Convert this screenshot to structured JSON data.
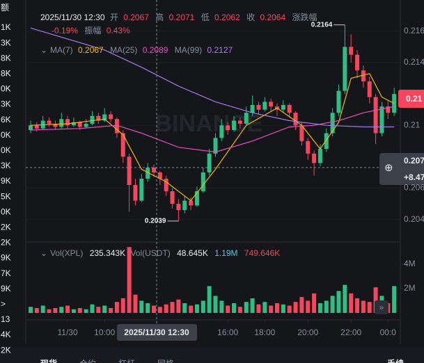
{
  "left_column": {
    "header": "额",
    "items": [
      "1K",
      "3K",
      "8K",
      "8K",
      "0K",
      "3K",
      "6K",
      "0K",
      "0K",
      "3K",
      "9K",
      "5K",
      "0K",
      "2K",
      "2K",
      "9K",
      "7K",
      "9K",
      ">",
      "13",
      "4K",
      "2K"
    ]
  },
  "info": {
    "time": "2025/11/30 12:30",
    "open_label": "开",
    "open": "0.2067",
    "high_label": "高",
    "high": "0.2071",
    "low_label": "低",
    "low": "0.2062",
    "close_label": "收",
    "close": "0.2064",
    "change_label": "涨跌幅",
    "change": "-0.19%",
    "amplitude_label": "振幅",
    "amplitude": "0.43%"
  },
  "ma_legend": [
    {
      "name": "MA(7)",
      "value": "0.2067"
    },
    {
      "name": "MA(25)",
      "value": "0.2089"
    },
    {
      "name": "MA(99)",
      "value": "0.2127"
    }
  ],
  "vol_legend": {
    "vol_xpl_label": "Vol(XPL)",
    "vol_xpl": "235.343K",
    "vol_usdt_label": "Vol(USDT)",
    "vol_usdt": "48.645K",
    "ma1": "1.19M",
    "ma2": "749.646K"
  },
  "watermark": "BINANCE",
  "price_badge": "0.21",
  "hover_badge": {
    "price": "0.207",
    "change": "+8.47"
  },
  "hover_time": "2025/11/30 12:30",
  "bottom_tabs": [
    "现货",
    "合约",
    "杠杆",
    "网格"
  ],
  "bottom_right": "手续",
  "chart_data": {
    "type": "candlestick",
    "up_color": "#2ebd85",
    "down_color": "#f6465d",
    "ylim": [
      0.2027,
      0.2171
    ],
    "yticks": [
      0.216,
      0.214,
      0.21,
      0.206,
      0.204
    ],
    "xticks": [
      {
        "value": 6,
        "label": "11/30"
      },
      {
        "value": 12,
        "label": "10:00"
      },
      {
        "value": 32,
        "label": "16:00"
      },
      {
        "value": 38,
        "label": "18:00"
      },
      {
        "value": 45,
        "label": "20:00"
      },
      {
        "value": 52,
        "label": "22:00"
      },
      {
        "value": 58,
        "label": "00:0"
      }
    ],
    "annotations": [
      {
        "text": "0.2164",
        "candle": 51
      },
      {
        "text": "0.2039",
        "candle": 24
      }
    ],
    "candles": [
      [
        0.2097,
        0.2103,
        0.2095,
        0.21
      ],
      [
        0.21,
        0.2102,
        0.2096,
        0.2098
      ],
      [
        0.2098,
        0.2106,
        0.2097,
        0.2103
      ],
      [
        0.2103,
        0.2105,
        0.2099,
        0.2101
      ],
      [
        0.2101,
        0.2103,
        0.2097,
        0.2099
      ],
      [
        0.2099,
        0.2108,
        0.2098,
        0.2104
      ],
      [
        0.2104,
        0.2106,
        0.2098,
        0.21
      ],
      [
        0.21,
        0.2105,
        0.2099,
        0.2102
      ],
      [
        0.2102,
        0.2103,
        0.2097,
        0.2099
      ],
      [
        0.2099,
        0.2104,
        0.2098,
        0.2101
      ],
      [
        0.2101,
        0.2109,
        0.21,
        0.2106
      ],
      [
        0.2106,
        0.2108,
        0.2101,
        0.2103
      ],
      [
        0.2103,
        0.2111,
        0.2102,
        0.2107
      ],
      [
        0.2107,
        0.2109,
        0.2102,
        0.2104
      ],
      [
        0.2104,
        0.2105,
        0.2092,
        0.2095
      ],
      [
        0.2095,
        0.2097,
        0.2076,
        0.208
      ],
      [
        0.208,
        0.2082,
        0.2045,
        0.2062
      ],
      [
        0.2062,
        0.2066,
        0.2049,
        0.2052
      ],
      [
        0.2052,
        0.2069,
        0.2051,
        0.2066
      ],
      [
        0.2066,
        0.2076,
        0.2064,
        0.2073
      ],
      [
        0.2073,
        0.2075,
        0.2067,
        0.207
      ],
      [
        0.207,
        0.2071,
        0.2062,
        0.2066
      ],
      [
        0.2066,
        0.2068,
        0.2055,
        0.2058
      ],
      [
        0.2058,
        0.206,
        0.2047,
        0.205
      ],
      [
        0.205,
        0.2053,
        0.2039,
        0.2046
      ],
      [
        0.2046,
        0.2055,
        0.2044,
        0.2052
      ],
      [
        0.2052,
        0.2054,
        0.2046,
        0.2049
      ],
      [
        0.2049,
        0.2061,
        0.2048,
        0.2058
      ],
      [
        0.2058,
        0.2073,
        0.2057,
        0.207
      ],
      [
        0.207,
        0.2085,
        0.2068,
        0.2082
      ],
      [
        0.2082,
        0.2095,
        0.208,
        0.2092
      ],
      [
        0.2092,
        0.2104,
        0.209,
        0.21
      ],
      [
        0.21,
        0.2102,
        0.2094,
        0.2097
      ],
      [
        0.2097,
        0.2106,
        0.2096,
        0.2103
      ],
      [
        0.2103,
        0.2105,
        0.2098,
        0.2101
      ],
      [
        0.2101,
        0.2112,
        0.21,
        0.2108
      ],
      [
        0.2108,
        0.2119,
        0.2106,
        0.2113
      ],
      [
        0.2113,
        0.2115,
        0.2107,
        0.211
      ],
      [
        0.211,
        0.2118,
        0.2109,
        0.2115
      ],
      [
        0.2115,
        0.2117,
        0.2109,
        0.2112
      ],
      [
        0.2112,
        0.2114,
        0.2106,
        0.211
      ],
      [
        0.211,
        0.2116,
        0.2108,
        0.2113
      ],
      [
        0.2113,
        0.2114,
        0.2105,
        0.2108
      ],
      [
        0.2108,
        0.2109,
        0.2097,
        0.21
      ],
      [
        0.21,
        0.2102,
        0.2087,
        0.209
      ],
      [
        0.209,
        0.2092,
        0.2078,
        0.2082
      ],
      [
        0.2082,
        0.2084,
        0.2068,
        0.2076
      ],
      [
        0.2076,
        0.2088,
        0.2074,
        0.2085
      ],
      [
        0.2085,
        0.2098,
        0.2083,
        0.2095
      ],
      [
        0.2095,
        0.2111,
        0.2093,
        0.2108
      ],
      [
        0.2108,
        0.2126,
        0.2106,
        0.2122
      ],
      [
        0.2122,
        0.2164,
        0.212,
        0.215
      ],
      [
        0.215,
        0.2158,
        0.214,
        0.2145
      ],
      [
        0.2145,
        0.2148,
        0.213,
        0.2135
      ],
      [
        0.2135,
        0.2138,
        0.2124,
        0.2128
      ],
      [
        0.2128,
        0.2131,
        0.2114,
        0.2118
      ],
      [
        0.2118,
        0.212,
        0.2088,
        0.2095
      ],
      [
        0.2095,
        0.2115,
        0.2093,
        0.2112
      ],
      [
        0.2112,
        0.2116,
        0.2104,
        0.2108
      ],
      [
        0.2108,
        0.2124,
        0.2106,
        0.212
      ]
    ],
    "ma": [
      {
        "name": "MA(7)",
        "color": "#f0b90b",
        "x": [
          0,
          6,
          12,
          15,
          18,
          22,
          26,
          30,
          35,
          40,
          44,
          47,
          50,
          52,
          55,
          57,
          59
        ],
        "values": [
          0.21,
          0.2101,
          0.2104,
          0.2094,
          0.2072,
          0.2064,
          0.2052,
          0.2072,
          0.21,
          0.2111,
          0.21,
          0.2085,
          0.2102,
          0.213,
          0.2133,
          0.2118,
          0.2114
        ]
      },
      {
        "name": "MA(25)",
        "color": "#e84fbf",
        "x": [
          0,
          8,
          14,
          18,
          24,
          30,
          36,
          42,
          46,
          50,
          54,
          59
        ],
        "values": [
          0.2097,
          0.2098,
          0.21,
          0.2095,
          0.2086,
          0.2083,
          0.209,
          0.2099,
          0.21,
          0.2103,
          0.2108,
          0.2112
        ]
      },
      {
        "name": "MA(99)",
        "color": "#a47ce8",
        "x": [
          0,
          6,
          12,
          18,
          24,
          30,
          36,
          42,
          48,
          54,
          59
        ],
        "values": [
          0.2162,
          0.2155,
          0.2148,
          0.2137,
          0.2125,
          0.2115,
          0.2108,
          0.2103,
          0.21,
          0.2099,
          0.2099
        ]
      }
    ],
    "volume": {
      "ylim": [
        0,
        5700000
      ],
      "yticks": [
        {
          "value": 4000000,
          "label": "4M"
        },
        {
          "value": 2000000,
          "label": "2M"
        }
      ],
      "values": [
        500000,
        400000,
        600000,
        300000,
        400000,
        500000,
        600000,
        300000,
        400000,
        300000,
        700000,
        500000,
        600000,
        400000,
        900000,
        1200000,
        5400000,
        1500000,
        1000000,
        800000,
        600000,
        500000,
        700000,
        900000,
        1100000,
        800000,
        600000,
        700000,
        1000000,
        2200000,
        1400000,
        1000000,
        600000,
        800000,
        500000,
        900000,
        1200000,
        700000,
        900000,
        600000,
        800000,
        700000,
        600000,
        900000,
        1300000,
        1000000,
        1600000,
        800000,
        1000000,
        1400000,
        1800000,
        2300000,
        1600000,
        1200000,
        1000000,
        900000,
        2100000,
        1400000,
        800000,
        2200000
      ]
    }
  }
}
